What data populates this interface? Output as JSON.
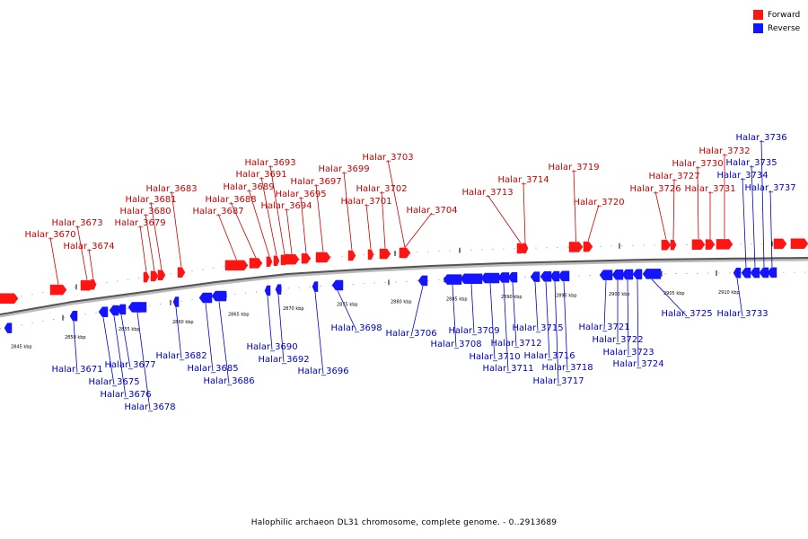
{
  "legend": {
    "forward": {
      "label": "Forward",
      "color": "#ff1414"
    },
    "reverse": {
      "label": "Reverse",
      "color": "#1414ff"
    }
  },
  "caption": "Halophilic archaeon DL31 chromosome, complete genome. - 0..2913689",
  "ticks": [
    "2845 kbp",
    "2850 kbp",
    "2855 kbp",
    "2860 kbp",
    "2865 kbp",
    "2870 kbp",
    "2875 kbp",
    "2880 kbp",
    "2885 kbp",
    "2890 kbp",
    "2895 kbp",
    "2900 kbp",
    "2905 kbp",
    "2910 kbp"
  ],
  "forward_genes": [
    "Halar_3670",
    "Halar_3673",
    "Halar_3674",
    "Halar_3679",
    "Halar_3680",
    "Halar_3681",
    "Halar_3683",
    "Halar_3687",
    "Halar_3688",
    "Halar_3689",
    "Halar_3691",
    "Halar_3693",
    "Halar_3694",
    "Halar_3695",
    "Halar_3697",
    "Halar_3699",
    "Halar_3701",
    "Halar_3702",
    "Halar_3703",
    "Halar_3704",
    "Halar_3713",
    "Halar_3714",
    "Halar_3719",
    "Halar_3720",
    "Halar_3726",
    "Halar_3727",
    "Halar_3730",
    "Halar_3731",
    "Halar_3732"
  ],
  "reverse_genes": [
    "Halar_3671",
    "Halar_3675",
    "Halar_3676",
    "Halar_3677",
    "Halar_3678",
    "Halar_3682",
    "Halar_3685",
    "Halar_3686",
    "Halar_3690",
    "Halar_3692",
    "Halar_3696",
    "Halar_3698",
    "Halar_3706",
    "Halar_3708",
    "Halar_3709",
    "Halar_3710",
    "Halar_3711",
    "Halar_3712",
    "Halar_3715",
    "Halar_3716",
    "Halar_3717",
    "Halar_3718",
    "Halar_3721",
    "Halar_3722",
    "Halar_3723",
    "Halar_3724",
    "Halar_3725",
    "Halar_3733",
    "Halar_3734",
    "Halar_3735",
    "Halar_3736",
    "Halar_3737"
  ]
}
